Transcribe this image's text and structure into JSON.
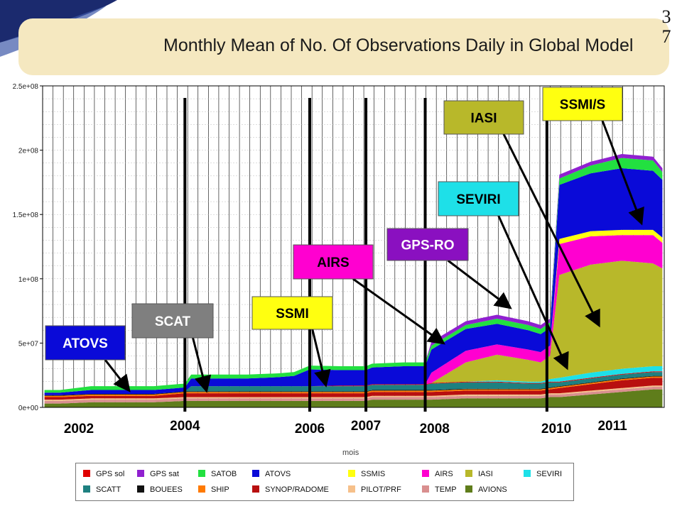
{
  "slide": {
    "title": "Monthly Mean of No. Of Observations Daily in Global Model",
    "number": "3\n7",
    "xaxis_label": "mois"
  },
  "chart_data": {
    "type": "area",
    "stacked": true,
    "title": "Monthly Mean of No. Of Observations Daily in Global Model",
    "xlabel": "mois",
    "ylabel": "",
    "ylim": [
      0,
      250000000
    ],
    "yticks": [
      "0e+00",
      "5e+07",
      "1e+08",
      "1.5e+08",
      "2e+08",
      "2.5e+08"
    ],
    "ytick_values": [
      0,
      50000000,
      100000000,
      150000000,
      200000000,
      250000000
    ],
    "xlim": [
      2001.72,
      2011.68
    ],
    "grid": true,
    "year_labels": [
      {
        "label": "2002",
        "x": 2002.3
      },
      {
        "label": "2004",
        "x": 2004.0
      },
      {
        "label": "2006",
        "x": 2006.0
      },
      {
        "label": "2007",
        "x": 2006.9
      },
      {
        "label": "2008",
        "x": 2008.0
      },
      {
        "label": "2010",
        "x": 2009.95
      },
      {
        "label": "2011",
        "x": 2010.85
      }
    ],
    "event_lines": [
      2004.0,
      2006.0,
      2006.9,
      2007.85,
      2009.8
    ],
    "x": [
      2001.75,
      2002.0,
      2002.5,
      2003.0,
      2003.5,
      2004.0,
      2004.1,
      2004.5,
      2005.0,
      2005.5,
      2005.75,
      2006.0,
      2006.5,
      2006.9,
      2007.0,
      2007.5,
      2007.85,
      2007.95,
      2008.5,
      2009.0,
      2009.5,
      2009.7,
      2009.85,
      2010.0,
      2010.5,
      2011.0,
      2011.5,
      2011.65
    ],
    "series": [
      {
        "name": "AVIONS",
        "color": "#5f7d1b",
        "values": [
          3,
          3,
          4,
          4,
          4,
          5,
          5,
          5,
          5,
          5,
          5,
          5,
          5,
          5,
          6,
          6,
          6,
          6,
          7,
          7,
          7,
          7,
          8,
          8,
          10,
          12,
          14,
          14
        ]
      },
      {
        "name": "TEMP",
        "color": "#d98f8f",
        "values": [
          2,
          2,
          2,
          2,
          2,
          2,
          2,
          2,
          2,
          2,
          2,
          2,
          2,
          2,
          2,
          2,
          2,
          2,
          2,
          2,
          2,
          2,
          2,
          2,
          2,
          2,
          2,
          2
        ]
      },
      {
        "name": "PILOT/PRF",
        "color": "#f6c08a",
        "values": [
          1,
          1,
          1,
          1,
          1,
          1,
          1,
          1,
          1,
          1,
          1,
          1,
          1,
          1,
          1,
          1,
          1,
          1,
          1,
          1,
          1,
          1,
          1,
          1,
          1,
          1,
          1,
          1
        ]
      },
      {
        "name": "SYNOP/RADOME",
        "color": "#b80f0f",
        "values": [
          2,
          2,
          2,
          2,
          2,
          3,
          3,
          3,
          3,
          3,
          3,
          3,
          3,
          3,
          3,
          3,
          3,
          3,
          3,
          3,
          3,
          3,
          3,
          4,
          5,
          6,
          6,
          6
        ]
      },
      {
        "name": "SHIP",
        "color": "#ff7a00",
        "values": [
          1,
          1,
          1,
          1,
          1,
          1,
          1,
          1,
          1,
          1,
          1,
          1,
          1,
          1,
          1,
          1,
          1,
          1,
          1,
          1,
          1,
          1,
          1,
          1,
          1,
          1,
          1,
          1
        ]
      },
      {
        "name": "BOUEES",
        "color": "#111111",
        "values": [
          0.5,
          0.5,
          0.5,
          0.5,
          0.5,
          0.5,
          0.5,
          0.5,
          0.5,
          0.5,
          0.5,
          0.5,
          0.5,
          0.5,
          0.5,
          0.5,
          0.5,
          0.5,
          0.5,
          0.5,
          0.5,
          0.5,
          0.5,
          0.5,
          0.5,
          0.5,
          0.5,
          0.5
        ]
      },
      {
        "name": "SCATT",
        "color": "#1e8080",
        "values": [
          0,
          0,
          0,
          0,
          0,
          0,
          4,
          4,
          4,
          4,
          4,
          4,
          4,
          4,
          4,
          4,
          4,
          5,
          5,
          5,
          4,
          4,
          4,
          3,
          3,
          3,
          3,
          3
        ]
      },
      {
        "name": "GPS sol",
        "color": "#e00000",
        "values": [
          0,
          0,
          0,
          0,
          0,
          0,
          0,
          0,
          0,
          0,
          0,
          0,
          0.5,
          0.5,
          0.5,
          0.5,
          0.5,
          0.5,
          0.5,
          0.5,
          0.5,
          0.5,
          0.5,
          0.5,
          0.5,
          0.5,
          0.5,
          0.5
        ]
      },
      {
        "name": "SEVIRI",
        "color": "#1ee0e8",
        "values": [
          0,
          0,
          0,
          0,
          0,
          0,
          0,
          0,
          0,
          0,
          0,
          0,
          0,
          0,
          0,
          0,
          0,
          0,
          0,
          1,
          1,
          1,
          2,
          3,
          4,
          4,
          4,
          4
        ]
      },
      {
        "name": "IASI",
        "color": "#b8b82a",
        "values": [
          0,
          0,
          0,
          0,
          0,
          0,
          0,
          0,
          0,
          0,
          0,
          0,
          0,
          0,
          0,
          0,
          0,
          0,
          15,
          20,
          17,
          15,
          18,
          80,
          84,
          84,
          80,
          76
        ]
      },
      {
        "name": "AIRS",
        "color": "#ff00d0",
        "values": [
          0,
          0,
          0,
          0,
          0,
          0,
          0,
          0,
          0,
          0,
          0,
          0,
          0,
          0,
          0,
          0,
          0,
          8,
          9,
          8,
          8,
          8,
          8,
          24,
          22,
          20,
          22,
          20
        ]
      },
      {
        "name": "SSMIS",
        "color": "#ffff10",
        "values": [
          0,
          0,
          0,
          0,
          0,
          0,
          0,
          0,
          0,
          0,
          0,
          0,
          0,
          0,
          0,
          0,
          0,
          0,
          0,
          0,
          0,
          0,
          0,
          4,
          4,
          4,
          4,
          4
        ]
      },
      {
        "name": "ATOVS",
        "color": "#0a0ad8",
        "values": [
          2,
          2,
          3,
          3,
          3,
          3,
          6,
          6,
          6,
          7,
          8,
          13,
          12,
          12,
          13,
          14,
          14,
          18,
          17,
          16,
          15,
          14,
          14,
          42,
          45,
          48,
          46,
          45
        ]
      },
      {
        "name": "SATOB",
        "color": "#22e040",
        "values": [
          2,
          2,
          3,
          3,
          3,
          3,
          3,
          3,
          3,
          3,
          3,
          3,
          3,
          3,
          3,
          3,
          3,
          3,
          3,
          4,
          4,
          4,
          4,
          5,
          6,
          8,
          8,
          6
        ]
      },
      {
        "name": "GPS sat",
        "color": "#9020d0",
        "values": [
          0,
          0,
          0,
          0,
          0,
          0,
          0,
          0,
          0,
          0,
          0,
          0,
          0,
          0,
          0,
          0,
          0,
          3,
          3,
          3,
          3,
          3,
          3,
          3,
          3,
          3,
          3,
          3
        ]
      }
    ],
    "series_unit_multiplier": 1000000,
    "legend_placement": "bottom"
  },
  "callouts": [
    {
      "label": "ATOVS",
      "bg": "#0a0ad8",
      "fg": "#ffffff",
      "box": "atovs"
    },
    {
      "label": "SCAT",
      "bg": "#7f7f7f",
      "fg": "#ffffff",
      "box": "scat"
    },
    {
      "label": "SSMI",
      "bg": "#ffff10",
      "fg": "#000000",
      "box": "ssmi"
    },
    {
      "label": "AIRS",
      "bg": "#ff00d0",
      "fg": "#000000",
      "box": "airs"
    },
    {
      "label": "GPS-RO",
      "bg": "#8a10c0",
      "fg": "#ffffff",
      "box": "gpsro"
    },
    {
      "label": "IASI",
      "bg": "#b8b82a",
      "fg": "#000000",
      "box": "iasi"
    },
    {
      "label": "SEVIRI",
      "bg": "#1ee0e8",
      "fg": "#000000",
      "box": "seviri"
    },
    {
      "label": "SSMI/S",
      "bg": "#ffff10",
      "fg": "#000000",
      "box": "ssmis"
    }
  ],
  "legend": {
    "row1": [
      {
        "label": "GPS sol",
        "color": "#e00000"
      },
      {
        "label": "GPS sat",
        "color": "#9020d0"
      },
      {
        "label": "SATOB",
        "color": "#22e040"
      },
      {
        "label": "ATOVS",
        "color": "#0a0ad8"
      },
      {
        "label": "SSMIS",
        "color": "#ffff10"
      },
      {
        "label": "AIRS",
        "color": "#ff00d0"
      },
      {
        "label": "IASI",
        "color": "#b8b82a"
      },
      {
        "label": "SEVIRI",
        "color": "#1ee0e8"
      }
    ],
    "row2": [
      {
        "label": "SCATT",
        "color": "#1e8080"
      },
      {
        "label": "BOUEES",
        "color": "#111111"
      },
      {
        "label": "SHIP",
        "color": "#ff7a00"
      },
      {
        "label": "SYNOP/RADOME",
        "color": "#b80f0f"
      },
      {
        "label": "PILOT/PRF",
        "color": "#f6c08a"
      },
      {
        "label": "TEMP",
        "color": "#d98f8f"
      },
      {
        "label": "AVIONS",
        "color": "#5f7d1b"
      }
    ]
  }
}
